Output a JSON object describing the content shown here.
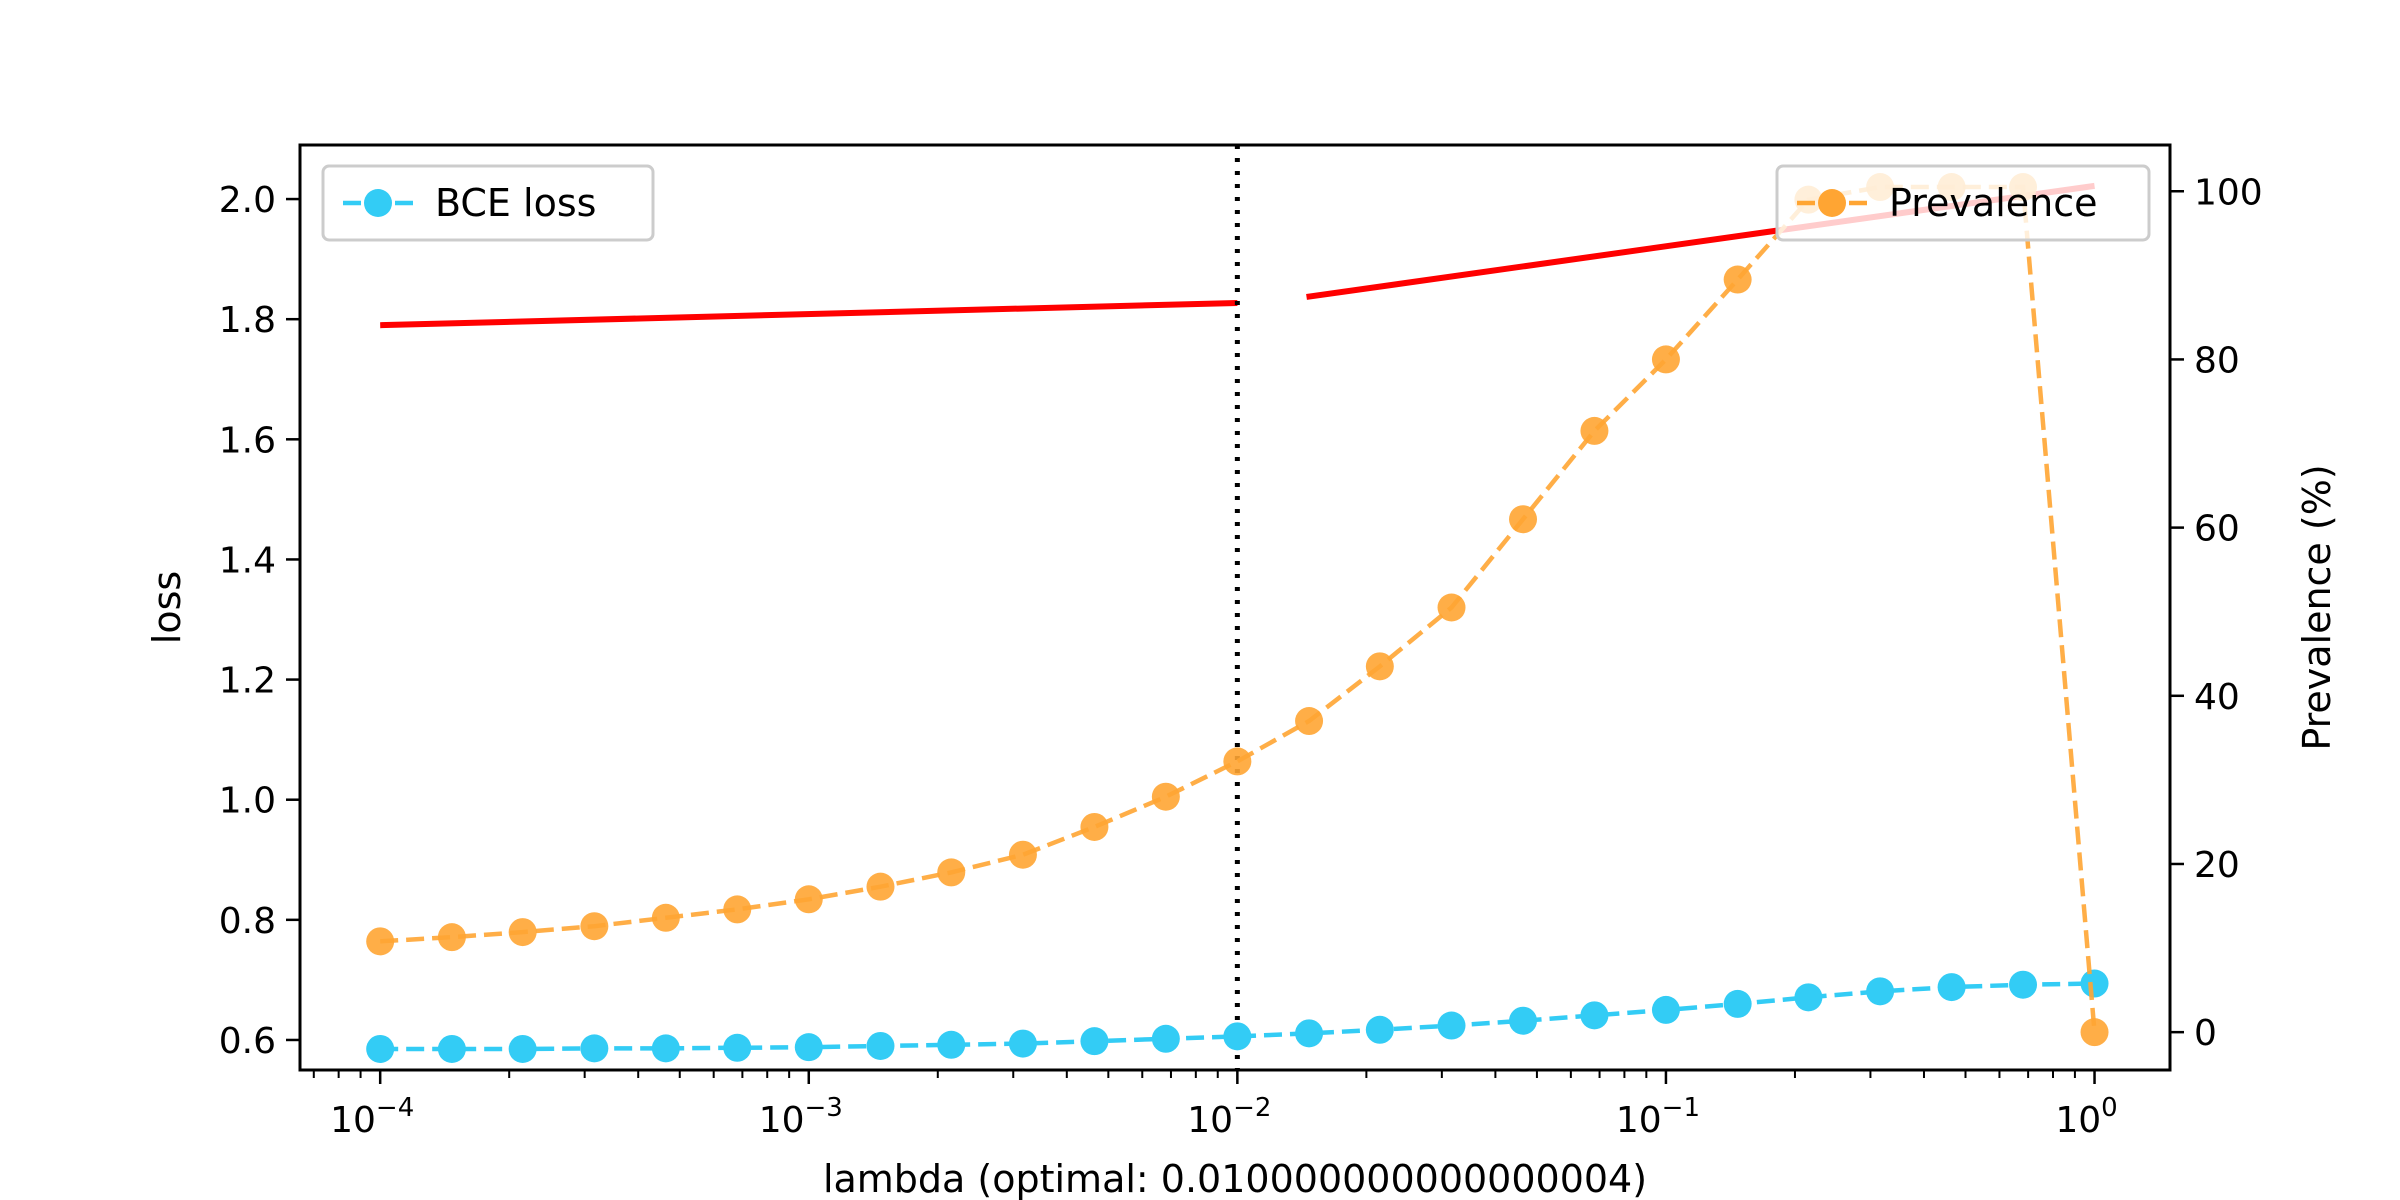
{
  "chart_data": {
    "type": "line",
    "x_scale": "log",
    "xlabel": "lambda (optimal: 0.010000000000000004)",
    "xlim": [
      6.5e-05,
      1.5
    ],
    "x_ticks": [
      {
        "value": 0.0001,
        "base": "10",
        "exp": "−4"
      },
      {
        "value": 0.001,
        "base": "10",
        "exp": "−3"
      },
      {
        "value": 0.01,
        "base": "10",
        "exp": "−2"
      },
      {
        "value": 0.1,
        "base": "10",
        "exp": "−1"
      },
      {
        "value": 1,
        "base": "10",
        "exp": "0"
      }
    ],
    "left_axis": {
      "label": "loss",
      "ylim": [
        0.55,
        2.09
      ],
      "ticks": [
        "0.6",
        "0.8",
        "1.0",
        "1.2",
        "1.4",
        "1.6",
        "1.8",
        "2.0"
      ]
    },
    "right_axis": {
      "label": "Prevalence (%)",
      "ylim": [
        -4.5,
        105.5
      ],
      "ticks": [
        "0",
        "20",
        "40",
        "60",
        "80",
        "100"
      ]
    },
    "x": [
      0.0001,
      0.000147,
      0.000215,
      0.000316,
      0.000464,
      0.000681,
      0.001,
      0.00147,
      0.00215,
      0.00316,
      0.00464,
      0.00681,
      0.01,
      0.0147,
      0.0215,
      0.0316,
      0.0464,
      0.0681,
      0.1,
      0.147,
      0.215,
      0.316,
      0.464,
      0.681,
      1
    ],
    "series": [
      {
        "name": "BCE loss",
        "axis": "left",
        "color": "#33ccf5",
        "style": "dashed-marker",
        "values": [
          0.585,
          0.585,
          0.585,
          0.586,
          0.586,
          0.587,
          0.588,
          0.59,
          0.592,
          0.594,
          0.598,
          0.602,
          0.606,
          0.611,
          0.617,
          0.624,
          0.632,
          0.641,
          0.65,
          0.66,
          0.671,
          0.681,
          0.688,
          0.692,
          0.694
        ]
      },
      {
        "name": "Prevalence",
        "axis": "right",
        "color": "#ffa533",
        "style": "dashed-marker",
        "values": [
          10.8,
          11.3,
          11.9,
          12.6,
          13.6,
          14.6,
          15.8,
          17.3,
          19.0,
          21.1,
          24.4,
          28.0,
          32.2,
          37.0,
          43.5,
          50.5,
          61.0,
          71.5,
          80.0,
          89.5,
          99.0,
          100.5,
          100.5,
          100.5,
          0.0
        ]
      }
    ],
    "extra_lines": [
      {
        "color": "#ff0000",
        "axis": "left",
        "x": [
          0.0001,
          0.01
        ],
        "y": [
          1.79,
          1.827
        ]
      },
      {
        "color": "#ff0000",
        "axis": "left",
        "x": [
          0.0145,
          1.0
        ],
        "y": [
          1.837,
          2.022
        ]
      }
    ],
    "optimal_line": {
      "x": 0.01,
      "style": "dotted",
      "color": "#000000"
    },
    "legends": [
      {
        "series": "BCE loss",
        "position": "upper-left"
      },
      {
        "series": "Prevalence",
        "position": "upper-right"
      }
    ]
  }
}
